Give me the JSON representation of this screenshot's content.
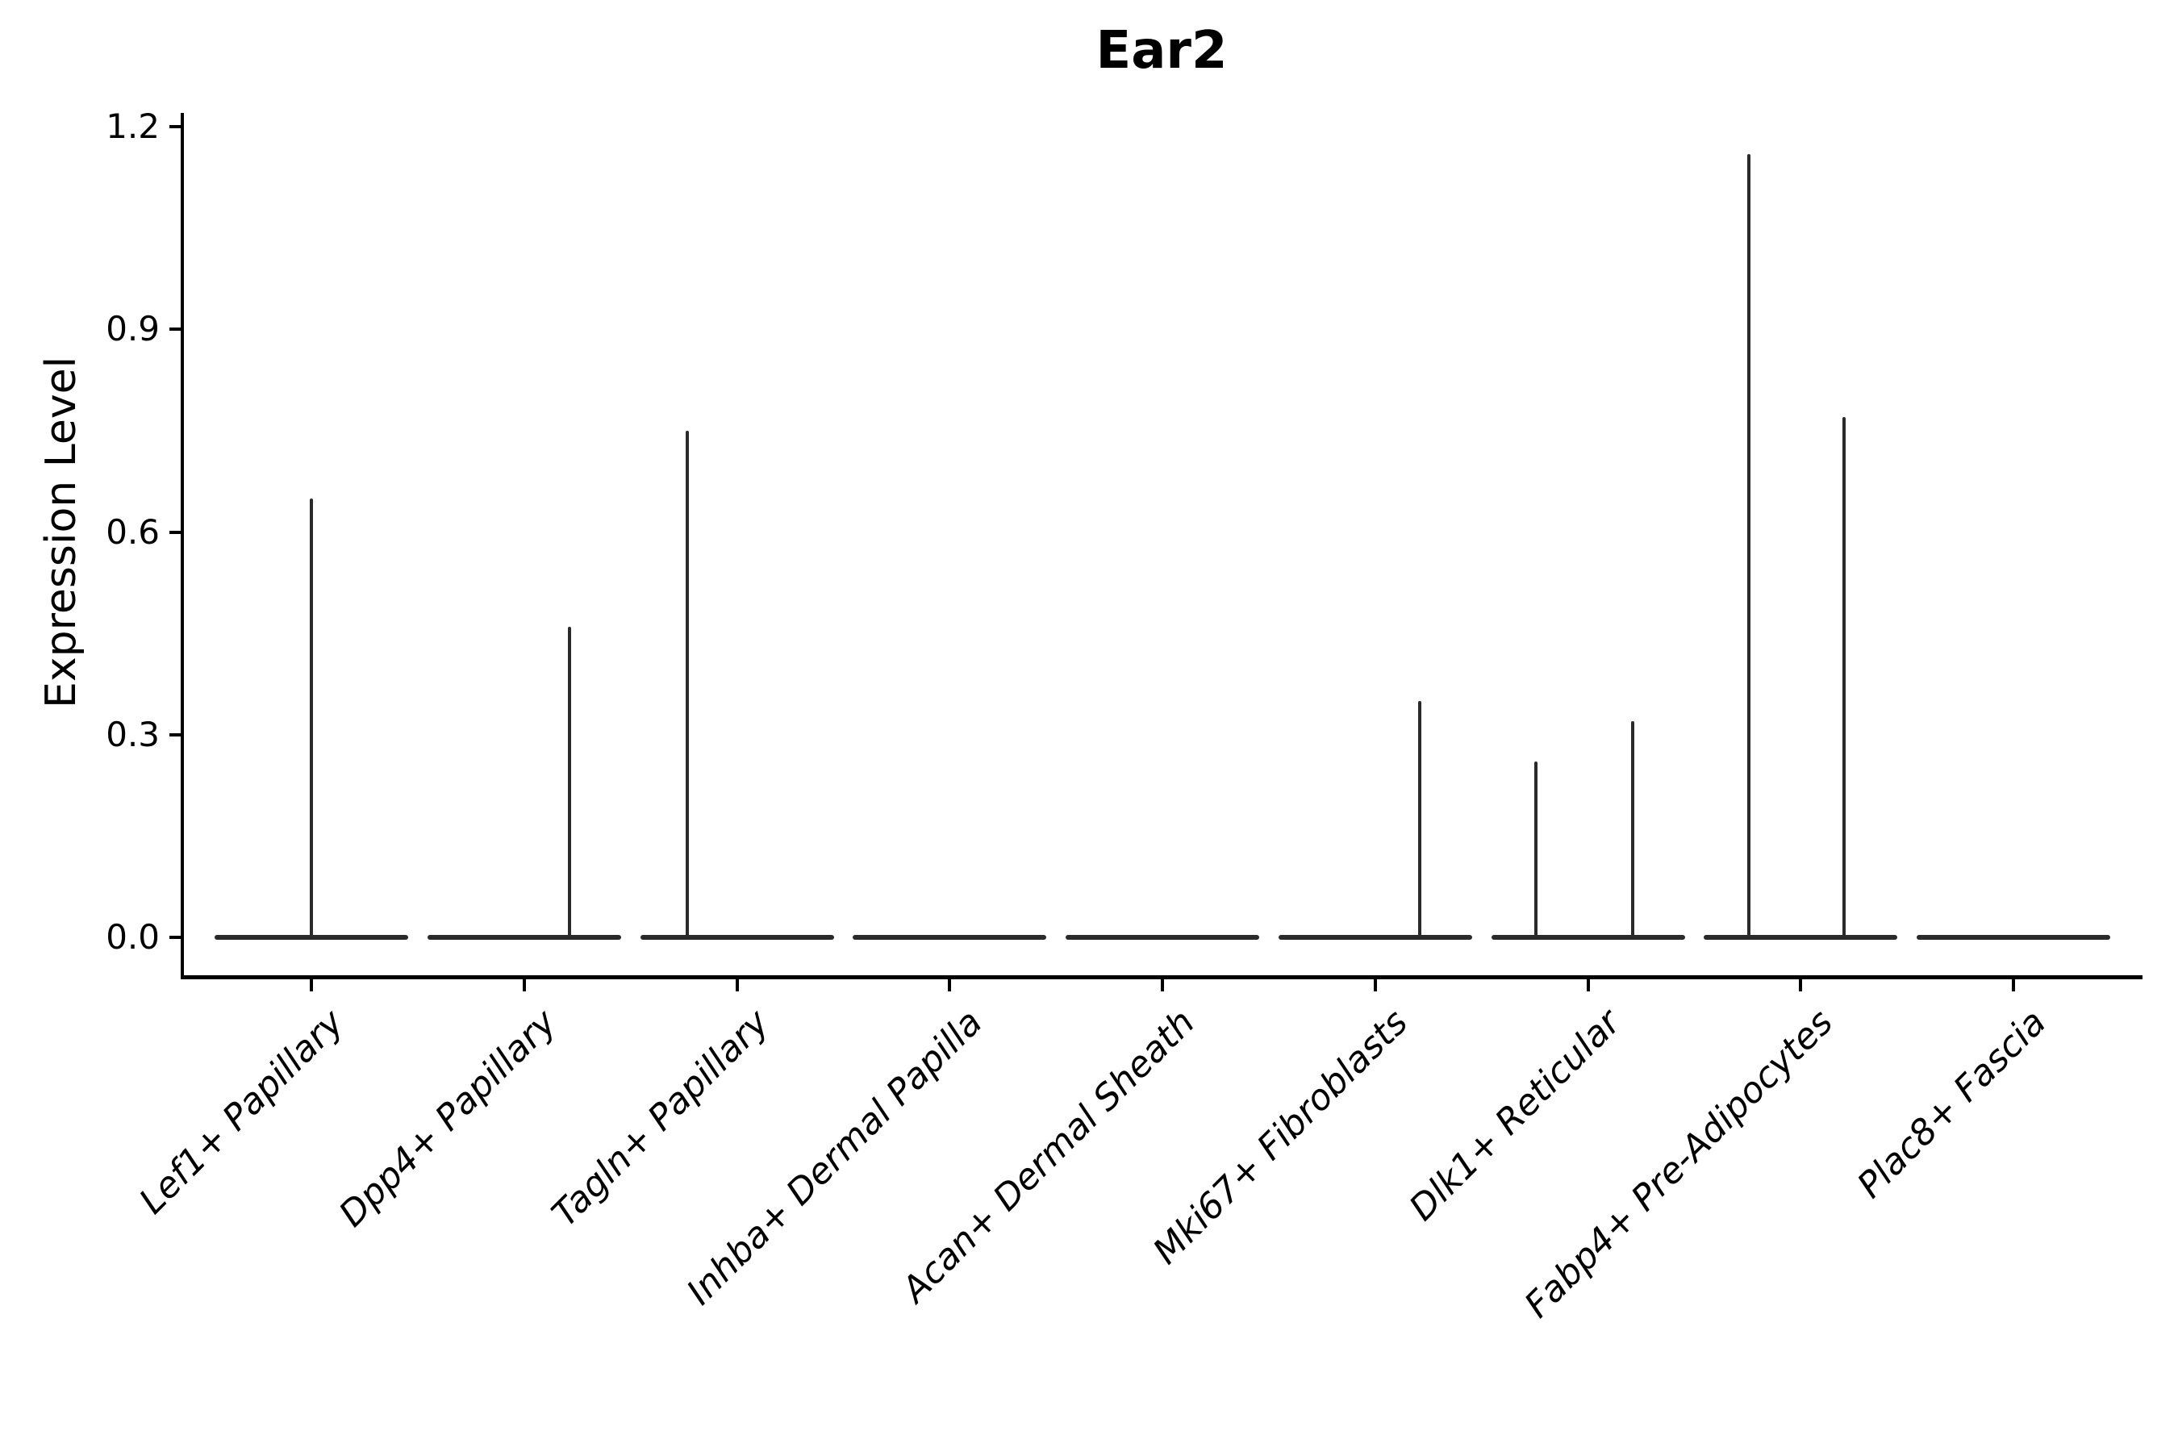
{
  "title": "Ear2",
  "y_axis": {
    "label": "Expression Level",
    "tick_labels": [
      "0.0",
      "0.3",
      "0.6",
      "0.9",
      "1.2"
    ],
    "min": 0,
    "max": 1.2
  },
  "x_axis": {
    "categories": [
      "Lef1+ Papillary",
      "Dpp4+ Papillary",
      "Tagln+ Papillary",
      "Inhba+ Dermal Papilla",
      "Acan+ Dermal Sheath",
      "Mki67+ Fibroblasts",
      "Dlk1+ Reticular",
      "Fabp4+ Pre-Adipocytes",
      "Plac8+ Fascia"
    ]
  },
  "chart_data": {
    "type": "violin",
    "title": "Ear2",
    "xlabel": "",
    "ylabel": "Expression Level",
    "ylim": [
      0,
      1.2
    ],
    "yticks": [
      0.0,
      0.3,
      0.6,
      0.9,
      1.2
    ],
    "grid": false,
    "legend": false,
    "categories": [
      "Lef1+ Papillary",
      "Dpp4+ Papillary",
      "Tagln+ Papillary",
      "Inhba+ Dermal Papilla",
      "Acan+ Dermal Sheath",
      "Mki67+ Fibroblasts",
      "Dlk1+ Reticular",
      "Fabp4+ Pre-Adipocytes",
      "Plac8+ Fascia"
    ],
    "violins": [
      {
        "baseline_value": 0.0,
        "spikes": [
          {
            "value": 0.65,
            "offset_frac": 0.0
          }
        ]
      },
      {
        "baseline_value": 0.0,
        "spikes": [
          {
            "value": 0.46,
            "offset_frac": 0.215
          }
        ]
      },
      {
        "baseline_value": 0.0,
        "spikes": [
          {
            "value": 0.75,
            "offset_frac": -0.235
          }
        ]
      },
      {
        "baseline_value": 0.0,
        "spikes": []
      },
      {
        "baseline_value": 0.0,
        "spikes": []
      },
      {
        "baseline_value": 0.0,
        "spikes": [
          {
            "value": 0.35,
            "offset_frac": 0.21
          }
        ]
      },
      {
        "baseline_value": 0.0,
        "spikes": [
          {
            "value": 0.26,
            "offset_frac": -0.243
          },
          {
            "value": 0.32,
            "offset_frac": 0.21
          }
        ]
      },
      {
        "baseline_value": 0.0,
        "spikes": [
          {
            "value": 1.16,
            "offset_frac": -0.243
          },
          {
            "value": 0.77,
            "offset_frac": 0.205
          }
        ]
      },
      {
        "baseline_value": 0.0,
        "spikes": []
      }
    ],
    "colors": {
      "violin_line": "#2a2a2a",
      "axis": "#000000",
      "text": "#000000",
      "background": "#ffffff"
    }
  }
}
